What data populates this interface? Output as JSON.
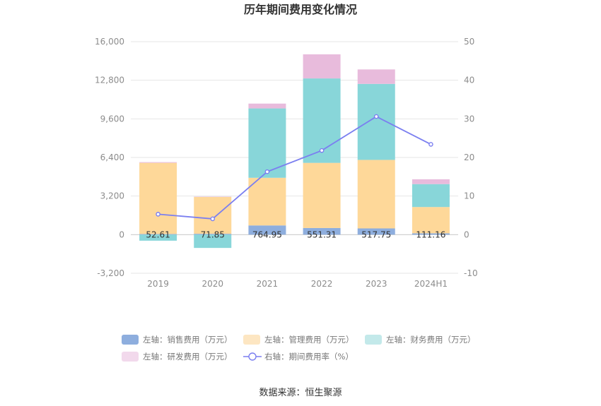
{
  "chart_data": {
    "type": "bar",
    "title": "历年期间费用变化情况",
    "source_text": "数据来源：恒生聚源",
    "categories": [
      "2019",
      "2020",
      "2021",
      "2022",
      "2023",
      "2024H1"
    ],
    "left_axis": {
      "min": -3200,
      "max": 16000,
      "ticks": [
        "16,000",
        "12,800",
        "9,600",
        "6,400",
        "3,200",
        "0",
        "-3,200"
      ],
      "tick_values": [
        16000,
        12800,
        9600,
        6400,
        3200,
        0,
        -3200
      ]
    },
    "right_axis": {
      "min": -10,
      "max": 50,
      "ticks": [
        "50",
        "40",
        "30",
        "20",
        "10",
        "0",
        "-10"
      ],
      "tick_values": [
        50,
        40,
        30,
        20,
        10,
        0,
        -10
      ]
    },
    "series": [
      {
        "name": "左轴：销售费用（万元）",
        "kind": "bar",
        "axis": "left",
        "color": "#8eaede",
        "values": [
          52.61,
          71.85,
          764.95,
          551.31,
          517.75,
          111.16
        ],
        "labels": [
          "52.61",
          "71.85",
          "764.95",
          "551.31",
          "517.75",
          "111.16"
        ]
      },
      {
        "name": "左轴：管理费用（万元）",
        "kind": "bar",
        "axis": "left",
        "color": "#fed899",
        "values": [
          5900,
          3050,
          3950,
          5400,
          5680,
          2180
        ]
      },
      {
        "name": "左轴：财务费用（万元）",
        "kind": "bar",
        "axis": "left",
        "color": "#88d6d9",
        "values": [
          -500,
          -1100,
          5750,
          7000,
          6300,
          1900
        ]
      },
      {
        "name": "左轴：研发费用（万元）",
        "kind": "bar",
        "axis": "left",
        "color": "#e8bbdc",
        "values": [
          60,
          30,
          400,
          2000,
          1200,
          400
        ]
      },
      {
        "name": "右轴：期间费用率（%）",
        "kind": "line",
        "axis": "right",
        "color": "#7b7ff0",
        "values": [
          5.3,
          4.1,
          16.3,
          21.8,
          30.6,
          23.4
        ]
      }
    ],
    "legend_colors": [
      "#8eaede",
      "#fde6c2",
      "#c3e9ea",
      "#f2d9ec"
    ],
    "grid": true,
    "legend_position": "bottom"
  }
}
